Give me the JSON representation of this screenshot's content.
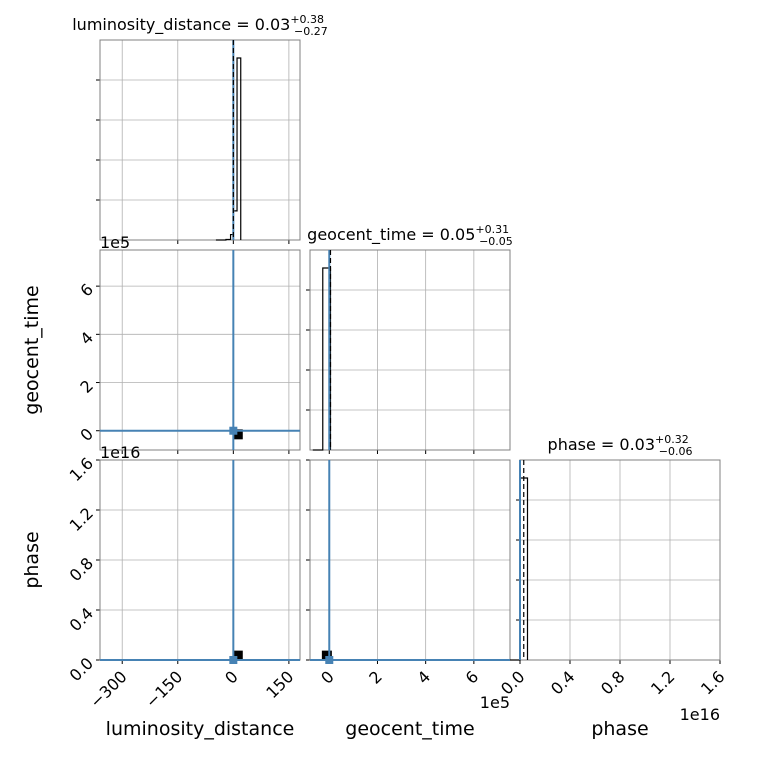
{
  "chart_data": {
    "type": "corner",
    "parameters": [
      "luminosity_distance",
      "geocent_time",
      "phase"
    ],
    "titles": [
      {
        "prefix": "luminosity_distance = ",
        "value": "0.03",
        "plus": "+0.38",
        "minus": "−0.27"
      },
      {
        "prefix": "geocent_time = ",
        "value": "0.05",
        "plus": "+0.31",
        "minus": "−0.05"
      },
      {
        "prefix": "phase = ",
        "value": "0.03",
        "plus": "+0.32",
        "minus": "−0.06"
      }
    ],
    "axis_labels": {
      "x": [
        "luminosity_distance",
        "geocent_time",
        "phase"
      ],
      "y": [
        "geocent_time",
        "phase"
      ]
    },
    "offsets": {
      "geocent_time_y": "1e5",
      "phase_y": "1e16",
      "geocent_time_x": "1e5",
      "phase_x": "1e16"
    },
    "ranges": {
      "luminosity_distance": [
        -360,
        180
      ],
      "geocent_time": [
        -0.8,
        7.5
      ],
      "phase": [
        0.0,
        1.6
      ]
    },
    "ticks": {
      "luminosity_distance": [
        "−300",
        "−150",
        "0",
        "150"
      ],
      "luminosity_distance_values": [
        -300,
        -150,
        0,
        150
      ],
      "geocent_time": [
        "0",
        "2",
        "4",
        "6"
      ],
      "geocent_time_values": [
        0,
        2,
        4,
        6
      ],
      "phase": [
        "0.0",
        "0.4",
        "0.8",
        "1.2",
        "1.6"
      ],
      "phase_values": [
        0.0,
        0.4,
        0.8,
        1.2,
        1.6
      ]
    },
    "injection": {
      "luminosity_distance": 0.0,
      "geocent_time": 0.0,
      "phase": 0.0
    },
    "histograms": {
      "luminosity_distance": {
        "edges": [
          -20,
          -7.5,
          0,
          10,
          20
        ],
        "counts": [
          0.003,
          0.03,
          0.16,
          1.0
        ],
        "median": 0.03
      },
      "geocent_time": {
        "edges": [
          -0.27,
          0.0,
          0.05
        ],
        "counts": [
          1.0,
          1.0
        ],
        "median": 0.05
      },
      "phase": {
        "edges": [
          0.0,
          0.06
        ],
        "counts": [
          1.0
        ],
        "median": 0.03
      }
    },
    "scatter": {
      "geocent_time_vs_luminosity_distance": [
        {
          "x": 12,
          "y": -0.15
        }
      ],
      "phase_vs_luminosity_distance": [
        {
          "x": 12,
          "y": 0.035
        }
      ],
      "phase_vs_geocent_time": [
        {
          "x": -0.1,
          "y": 0.035
        }
      ]
    },
    "grid": true,
    "colors": {
      "injection": "#4682b4",
      "samples": "#000000",
      "grid": "#b0b0b0"
    }
  }
}
